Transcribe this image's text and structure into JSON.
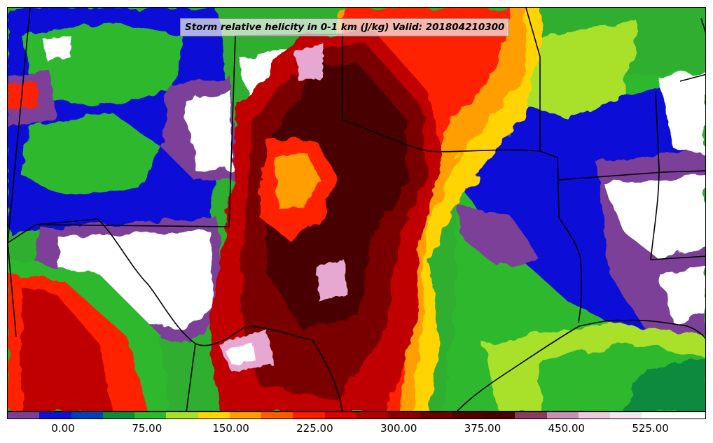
{
  "title": "Storm relative helicity in 0-1 km (J/kg) Valid: 201804210300",
  "colorbar": {
    "colors": [
      "#7b3f98",
      "#1010d8",
      "#0040c0",
      "#118a3c",
      "#2fb82f",
      "#a9e02a",
      "#ffd400",
      "#ff9e00",
      "#ff5a00",
      "#ff1a00",
      "#d80000",
      "#b00000",
      "#8a0000",
      "#6a0000",
      "#520000",
      "#4a0000",
      "#8a3a5a",
      "#c98fb5",
      "#f0c8e0",
      "#f8e4f0",
      "#ffffff",
      "#ffffff"
    ],
    "tick_labels": [
      "0.00",
      "75.00",
      "150.00",
      "225.00",
      "300.00",
      "375.00",
      "450.00",
      "525.00"
    ]
  },
  "map": {
    "colors": {
      "background": "#2fae2f",
      "white": "#ffffff",
      "purple": "#7b3f98",
      "blue": "#1010d8",
      "darkgreen": "#118a3c",
      "green": "#2fb82f",
      "lime": "#a9e02a",
      "yellow": "#ffd400",
      "orange": "#ff9e00",
      "red": "#ff2200",
      "crimson": "#c00000",
      "darkred": "#7a0000",
      "maroon": "#4a0000",
      "pink": "#e6a8d0"
    }
  }
}
